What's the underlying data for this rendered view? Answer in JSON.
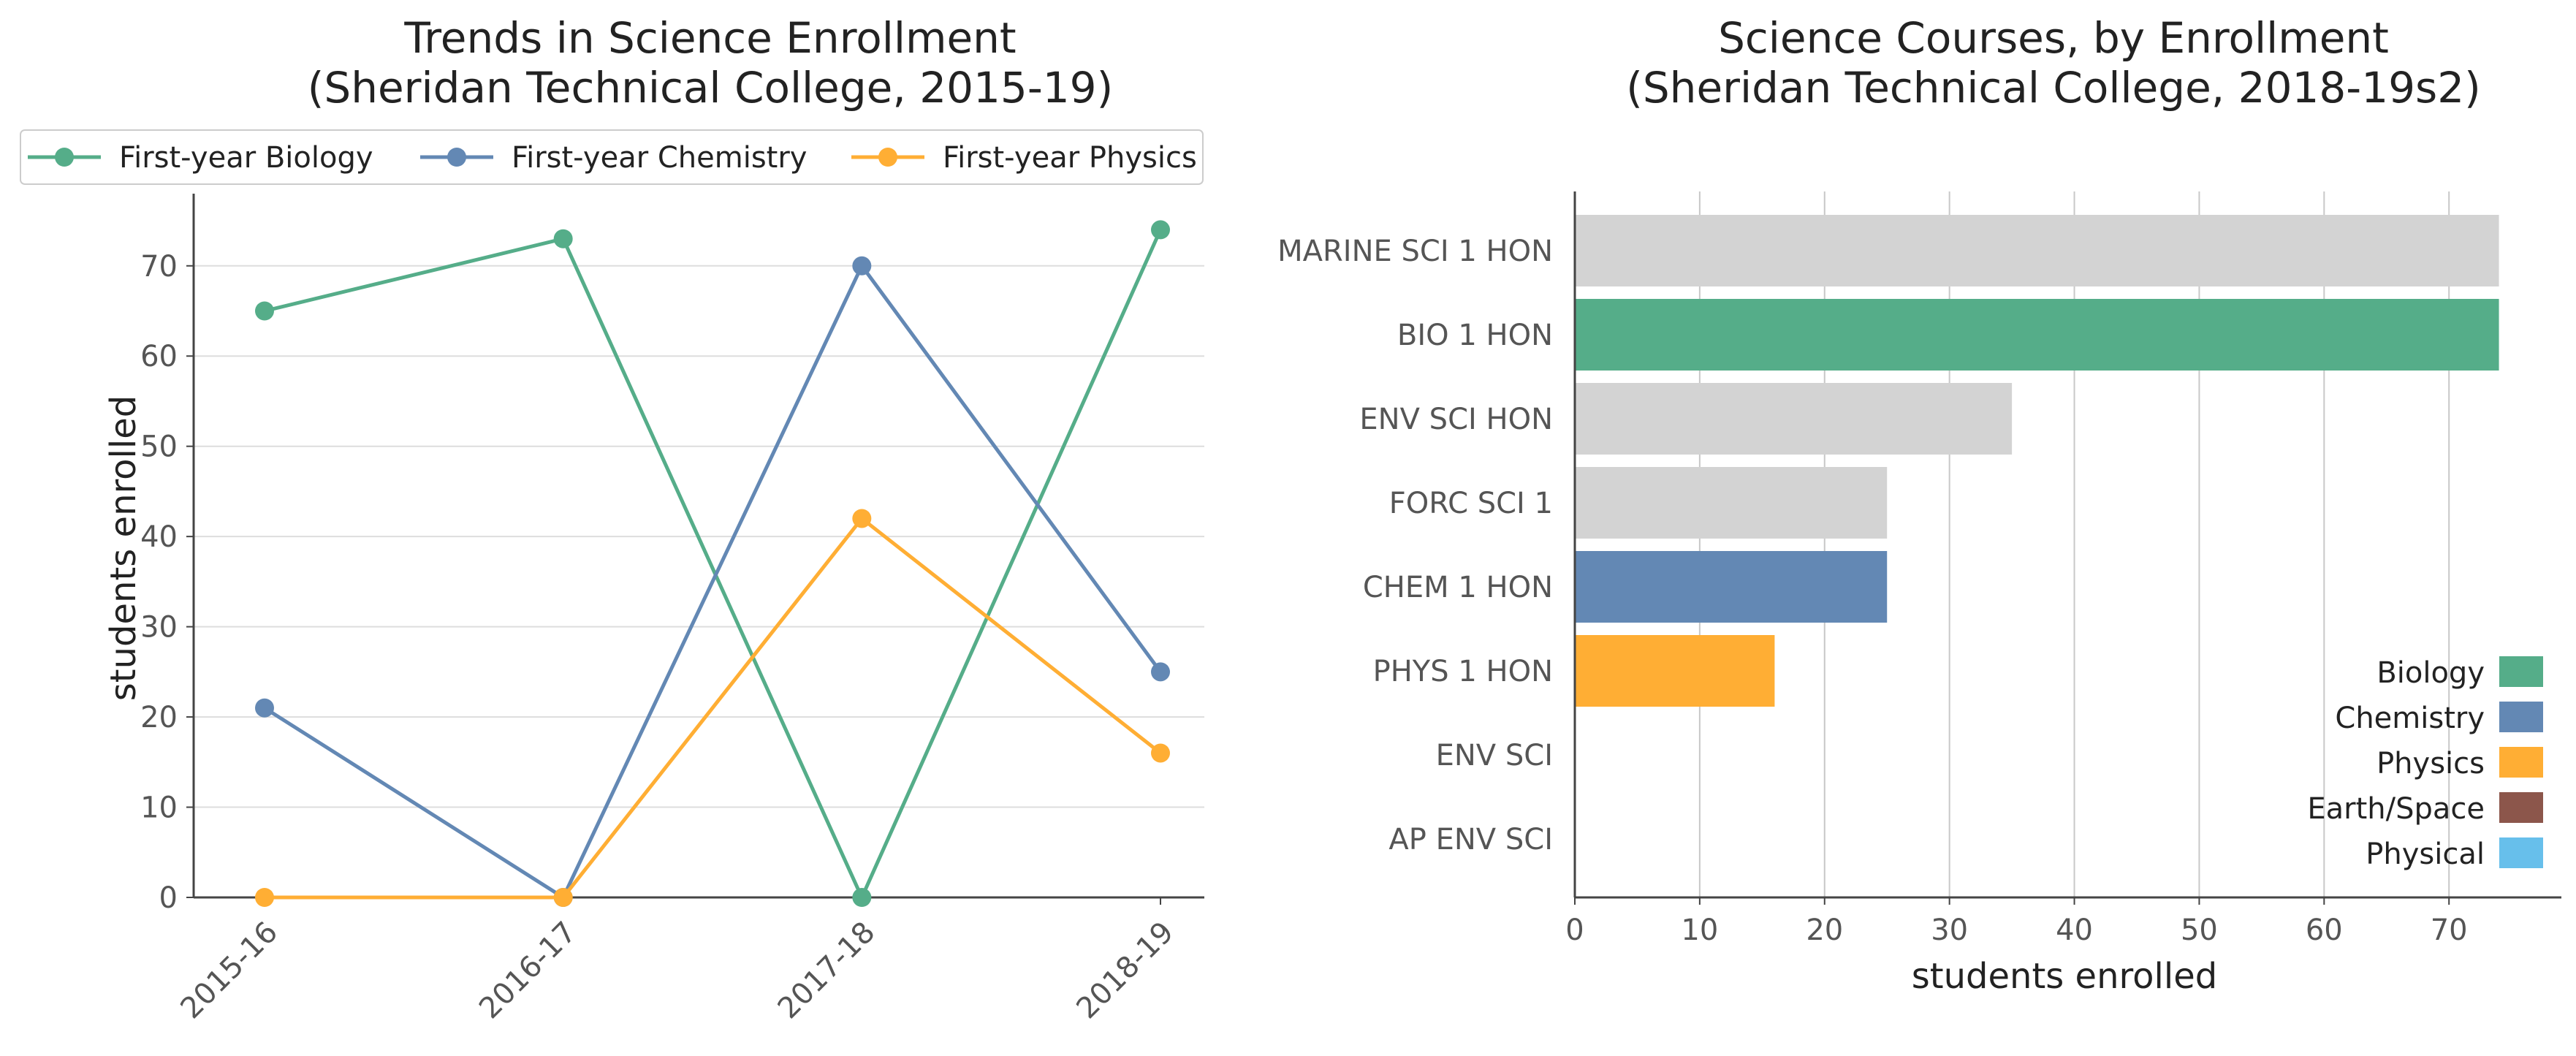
{
  "chart_data": [
    {
      "type": "line",
      "title": "Trends in Science Enrollment",
      "subtitle": "(Sheridan Technical College, 2015-19)",
      "xlabel": "",
      "ylabel": "students enrolled",
      "categories": [
        "2015-16",
        "2016-17",
        "2017-18",
        "2018-19"
      ],
      "ylim": [
        0,
        78
      ],
      "yticks": [
        0,
        10,
        20,
        30,
        40,
        50,
        60,
        70
      ],
      "grid": "horizontal",
      "legend": "top",
      "series": [
        {
          "name": "First-year Biology",
          "values": [
            65,
            73,
            0,
            74
          ],
          "color": "#55ad89"
        },
        {
          "name": "First-year Chemistry",
          "values": [
            21,
            0,
            70,
            25
          ],
          "color": "#6388b4"
        },
        {
          "name": "First-year Physics",
          "values": [
            0,
            0,
            42,
            16
          ],
          "color": "#ffae34"
        }
      ]
    },
    {
      "type": "bar",
      "orientation": "horizontal",
      "title": "Science Courses, by Enrollment",
      "subtitle": "(Sheridan Technical College, 2018-19s2)",
      "xlabel": "students enrolled",
      "ylabel": "",
      "xlim": [
        0,
        79
      ],
      "xticks": [
        0,
        10,
        20,
        30,
        40,
        50,
        60,
        70
      ],
      "grid": "vertical",
      "legend": "bottom-right",
      "categories": [
        "MARINE SCI 1 HON",
        "BIO 1 HON",
        "ENV SCI HON",
        "FORC SCI 1",
        "CHEM 1 HON",
        "PHYS 1 HON",
        "ENV SCI",
        "AP ENV SCI"
      ],
      "values": [
        74,
        74,
        35,
        25,
        25,
        16,
        0,
        0
      ],
      "bar_colors": [
        "#d3d3d3",
        "#55ad89",
        "#d3d3d3",
        "#d3d3d3",
        "#6388b4",
        "#ffae34",
        "#d3d3d3",
        "#d3d3d3"
      ],
      "legend_items": [
        {
          "name": "Biology",
          "color": "#55ad89"
        },
        {
          "name": "Chemistry",
          "color": "#6388b4"
        },
        {
          "name": "Physics",
          "color": "#ffae34"
        },
        {
          "name": "Earth/Space",
          "color": "#8c564b"
        },
        {
          "name": "Physical",
          "color": "#67bfeb"
        }
      ]
    }
  ]
}
